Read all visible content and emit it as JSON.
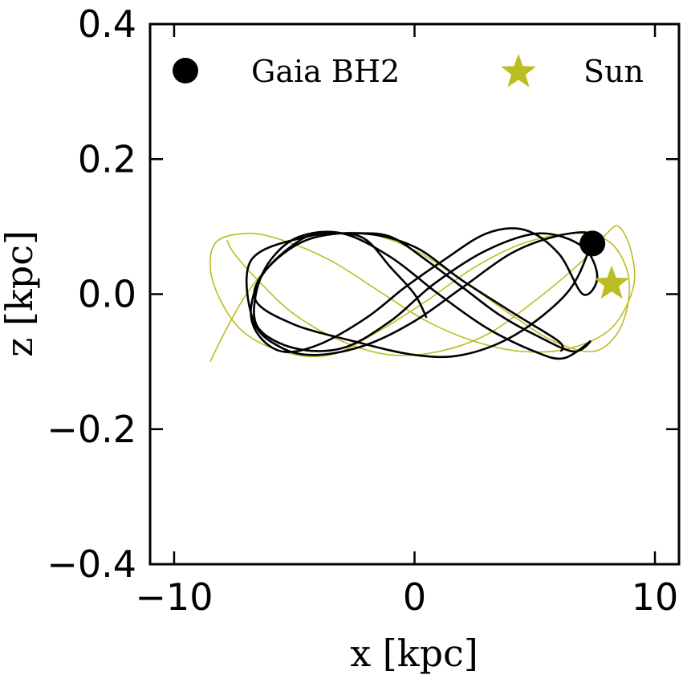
{
  "chart_data": {
    "type": "line",
    "title": "",
    "xlabel": "x [kpc]",
    "ylabel": "z [kpc]",
    "xlim": [
      -11,
      11
    ],
    "ylim": [
      -0.4,
      0.4
    ],
    "xticks": [
      -10,
      0,
      10
    ],
    "xtick_labels": [
      "−10",
      "0",
      "10"
    ],
    "yticks": [
      -0.4,
      -0.2,
      0.0,
      0.2,
      0.4
    ],
    "ytick_labels": [
      "−0.4",
      "−0.2",
      "0.0",
      "0.2",
      "0.4"
    ],
    "grid": false,
    "legend_position": "top",
    "series": [
      {
        "name": "Gaia BH2",
        "color": "#000000",
        "marker": "circle",
        "current_position": [
          7.4,
          0.075
        ],
        "orbit_x": [
          0.5,
          0.0,
          -1.0,
          -2.0,
          -3.0,
          -4.5,
          -6.2,
          -6.8,
          -6.5,
          -5.5,
          -4.0,
          -2.0,
          -0.4,
          1.2,
          3.0,
          4.6,
          6.0,
          7.0,
          7.6,
          7.0,
          5.2,
          3.0,
          0.8,
          -1.0,
          -3.0,
          -5.0,
          -6.5,
          -6.6,
          -6.0,
          -4.8,
          -3.0,
          -1.0,
          1.0,
          3.0,
          5.0,
          6.2,
          7.3,
          6.6,
          5.0,
          3.5,
          2.0,
          0.5,
          -1.0,
          -2.5,
          -4.5,
          -6.8,
          -6.7,
          -5.5,
          -4.0,
          -2.0,
          0.0,
          2.0,
          4.0,
          5.8,
          7.3,
          7.2,
          6.3,
          4.2,
          2.0,
          0.0,
          -2.5,
          -5.0,
          -6.6,
          -6.2,
          -4.5,
          -2.2,
          0.0,
          2.0,
          4.2,
          6.0,
          6.1
        ],
        "orbit_z": [
          -0.035,
          0.0,
          0.04,
          0.08,
          0.09,
          0.085,
          0.035,
          -0.02,
          -0.06,
          -0.085,
          -0.075,
          -0.035,
          0.01,
          0.05,
          0.09,
          0.095,
          0.06,
          0.0,
          0.025,
          0.07,
          0.09,
          0.065,
          0.015,
          -0.04,
          -0.08,
          -0.08,
          -0.05,
          0.0,
          0.05,
          0.085,
          0.09,
          0.055,
          0.0,
          -0.05,
          -0.085,
          -0.095,
          -0.07,
          -0.085,
          -0.06,
          -0.03,
          0.01,
          0.05,
          0.085,
          0.09,
          0.085,
          0.05,
          -0.04,
          -0.08,
          -0.09,
          -0.075,
          -0.04,
          0.01,
          0.06,
          0.085,
          0.09,
          0.06,
          0.0,
          -0.06,
          -0.09,
          -0.09,
          -0.07,
          -0.045,
          -0.01,
          0.035,
          0.08,
          0.09,
          0.07,
          0.02,
          -0.03,
          -0.07,
          -0.085
        ]
      },
      {
        "name": "Sun",
        "color": "#bcbd22",
        "marker": "star",
        "current_position": [
          8.2,
          0.02
        ],
        "orbit_x": [
          -8.5,
          -7.8,
          -6.8,
          -5.5,
          -4.0,
          -2.0,
          0.0,
          2.0,
          4.0,
          5.8,
          7.4,
          8.4,
          8.9,
          8.8,
          8.0,
          6.5,
          4.5,
          2.5,
          0.5,
          -1.5,
          -3.5,
          -5.5,
          -7.3,
          -8.4,
          -8.3,
          -7.0,
          -5.5,
          -3.5,
          -1.5,
          0.5,
          2.5,
          4.5,
          6.5,
          8.2,
          9.1,
          9.0,
          8.5,
          8.0,
          7.0,
          5.0,
          3.0,
          1.0,
          -1.0,
          -3.0,
          -5.0,
          -6.5,
          -7.5,
          -7.8
        ],
        "orbit_z": [
          -0.1,
          -0.05,
          0.01,
          0.06,
          0.085,
          0.09,
          0.065,
          0.02,
          -0.03,
          -0.07,
          -0.085,
          -0.06,
          -0.01,
          0.04,
          0.08,
          0.09,
          0.075,
          0.04,
          -0.01,
          -0.055,
          -0.09,
          -0.085,
          -0.05,
          0.02,
          0.075,
          0.09,
          0.08,
          0.05,
          0.005,
          -0.04,
          -0.07,
          -0.085,
          -0.08,
          -0.05,
          0.01,
          0.065,
          0.1,
          0.09,
          0.05,
          -0.01,
          -0.06,
          -0.085,
          -0.09,
          -0.07,
          -0.03,
          0.02,
          0.06,
          0.08
        ]
      }
    ]
  }
}
